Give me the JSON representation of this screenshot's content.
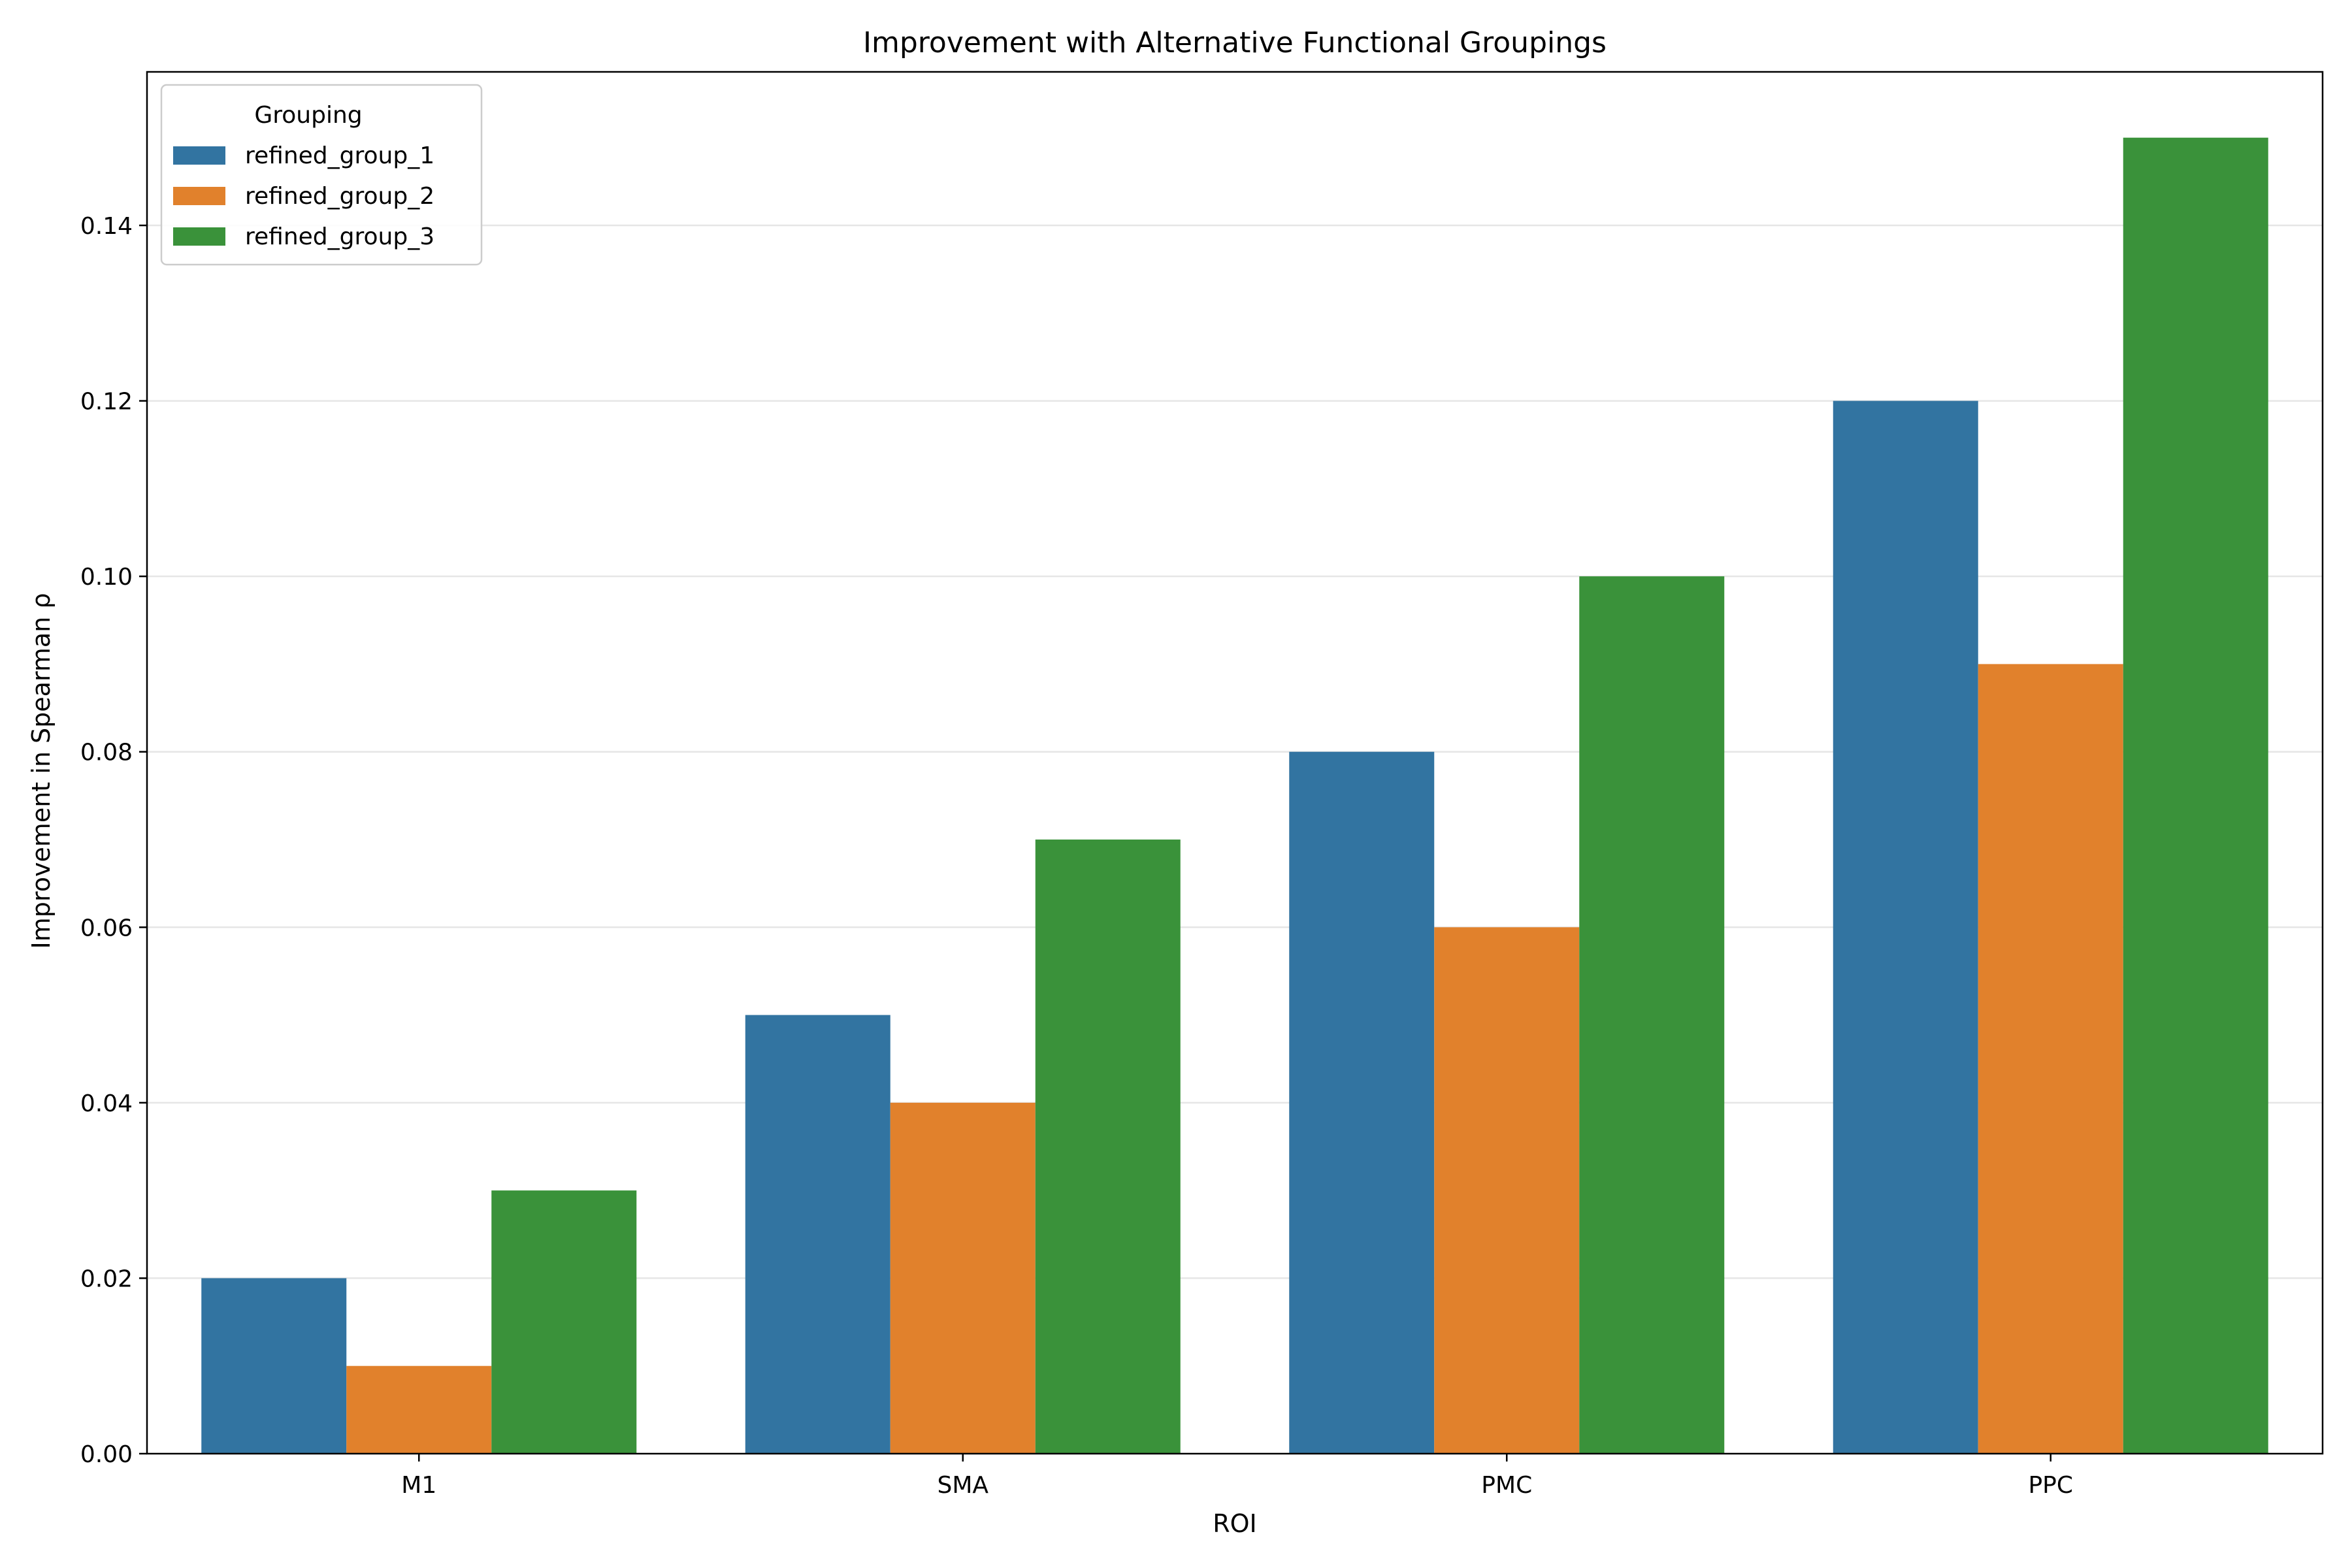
{
  "chart_data": {
    "type": "bar",
    "title": "Improvement with Alternative Functional Groupings",
    "xlabel": "ROI",
    "ylabel": "Improvement in Spearman ρ",
    "categories": [
      "M1",
      "SMA",
      "PMC",
      "PPC"
    ],
    "series": [
      {
        "name": "refined_group_1",
        "color": "#3274a1",
        "values": [
          0.02,
          0.05,
          0.08,
          0.12
        ]
      },
      {
        "name": "refined_group_2",
        "color": "#e1812c",
        "values": [
          0.01,
          0.04,
          0.06,
          0.09
        ]
      },
      {
        "name": "refined_group_3",
        "color": "#3a923a",
        "values": [
          0.03,
          0.07,
          0.1,
          0.15
        ]
      }
    ],
    "ylim": [
      0,
      0.1575
    ],
    "yticks": [
      "0.00",
      "0.02",
      "0.04",
      "0.06",
      "0.08",
      "0.10",
      "0.12",
      "0.14"
    ],
    "grid": "horizontal",
    "legend": {
      "title": "Grouping",
      "placement": "top-left"
    }
  }
}
